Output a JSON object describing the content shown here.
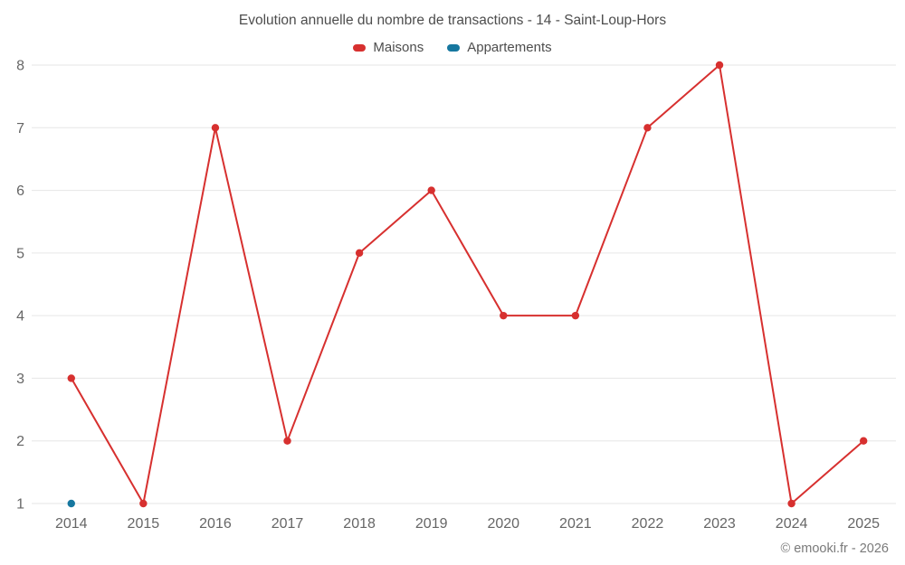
{
  "chart_data": {
    "type": "line",
    "title": "Evolution annuelle du nombre de transactions - 14 - Saint-Loup-Hors",
    "categories": [
      "2014",
      "2015",
      "2016",
      "2017",
      "2018",
      "2019",
      "2020",
      "2021",
      "2022",
      "2023",
      "2024",
      "2025"
    ],
    "series": [
      {
        "name": "Maisons",
        "color": "#d7302f",
        "values": [
          3,
          1,
          7,
          2,
          5,
          6,
          4,
          4,
          7,
          8,
          1,
          2
        ]
      },
      {
        "name": "Appartements",
        "color": "#16779f",
        "values": [
          1,
          null,
          null,
          null,
          null,
          null,
          null,
          null,
          null,
          null,
          null,
          null
        ]
      }
    ],
    "ylim": [
      1,
      8
    ],
    "yticks": [
      1,
      2,
      3,
      4,
      5,
      6,
      7,
      8
    ],
    "grid": true,
    "legend_position": "top",
    "grid_color": "#e6e6e6",
    "tick_label_color": "#666666"
  },
  "footer": {
    "copyright": "© emooki.fr - 2026"
  }
}
